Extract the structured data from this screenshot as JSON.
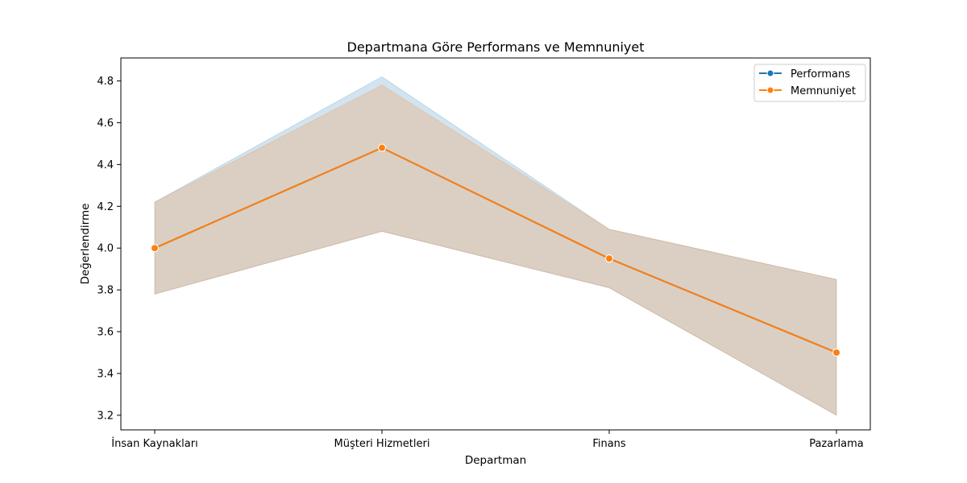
{
  "chart_data": {
    "type": "line",
    "title": "Departmana Göre Performans ve Memnuniyet",
    "xlabel": "Departman",
    "ylabel": "Değerlendirme",
    "categories": [
      "İnsan Kaynakları",
      "Müşteri Hizmetleri",
      "Finans",
      "Pazarlama"
    ],
    "ylim": [
      3.13,
      4.91
    ],
    "yticks": [
      3.2,
      3.4,
      3.6,
      3.8,
      4.0,
      4.2,
      4.4,
      4.6,
      4.8
    ],
    "legend_position": "top-right",
    "series": [
      {
        "name": "Performans",
        "color": "#1f77b4",
        "values": [
          4.0,
          4.48,
          3.95,
          3.5
        ],
        "ci_low": [
          3.78,
          4.08,
          3.81,
          3.2
        ],
        "ci_high": [
          4.22,
          4.82,
          4.09,
          3.85
        ]
      },
      {
        "name": "Memnuniyet",
        "color": "#ff7f0e",
        "values": [
          4.0,
          4.48,
          3.95,
          3.5
        ],
        "ci_low": [
          3.78,
          4.08,
          3.81,
          3.2
        ],
        "ci_high": [
          4.22,
          4.78,
          4.09,
          3.85
        ]
      }
    ]
  }
}
